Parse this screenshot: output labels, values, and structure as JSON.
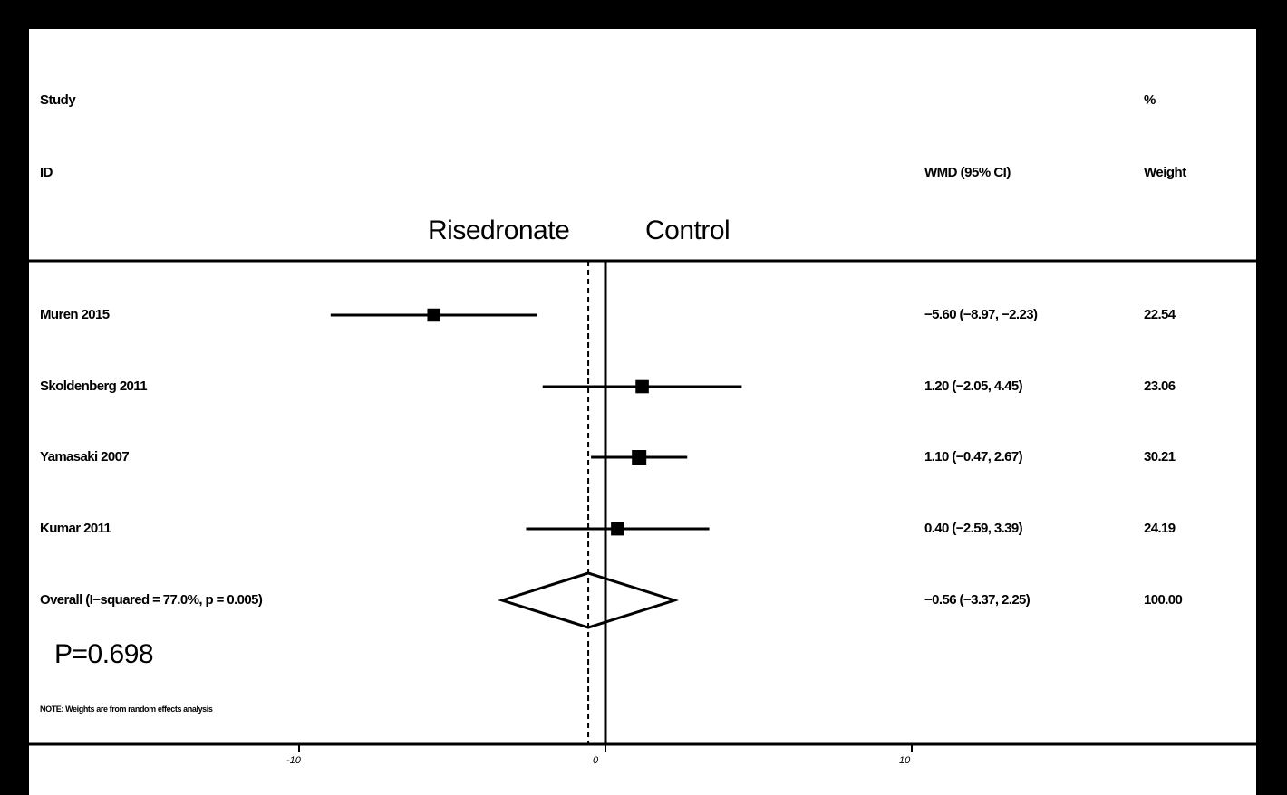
{
  "header": {
    "study_label": "Study",
    "id_label": "ID",
    "effect_label": "WMD (95% CI)",
    "percent_label": "%",
    "weight_label": "Weight"
  },
  "direction_labels": {
    "left": "Risedronate",
    "right": "Control"
  },
  "p_label": "P=0.698",
  "note": "NOTE: Weights are from random effects analysis",
  "chart_data": {
    "type": "forest",
    "effect_measure": "WMD",
    "xlim": [
      -10,
      10
    ],
    "ticks": [
      -10,
      0,
      10
    ],
    "null_value": 0,
    "overall_line": -0.56,
    "studies": [
      {
        "name": "Muren 2015",
        "estimate": -5.6,
        "lower": -8.97,
        "upper": -2.23,
        "ci_text": "−5.60 (−8.97, −2.23)",
        "weight": 22.54,
        "weight_text": "22.54"
      },
      {
        "name": "Skoldenberg 2011",
        "estimate": 1.2,
        "lower": -2.05,
        "upper": 4.45,
        "ci_text": "1.20 (−2.05, 4.45)",
        "weight": 23.06,
        "weight_text": "23.06"
      },
      {
        "name": "Yamasaki 2007",
        "estimate": 1.1,
        "lower": -0.47,
        "upper": 2.67,
        "ci_text": "1.10 (−0.47, 2.67)",
        "weight": 30.21,
        "weight_text": "30.21"
      },
      {
        "name": "Kumar 2011",
        "estimate": 0.4,
        "lower": -2.59,
        "upper": 3.39,
        "ci_text": "0.40 (−2.59, 3.39)",
        "weight": 24.19,
        "weight_text": "24.19"
      }
    ],
    "overall": {
      "label": "Overall  (I−squared = 77.0%, p = 0.005)",
      "estimate": -0.56,
      "lower": -3.37,
      "upper": 2.25,
      "ci_text": "−0.56 (−3.37, 2.25)",
      "weight_text": "100.00"
    }
  }
}
